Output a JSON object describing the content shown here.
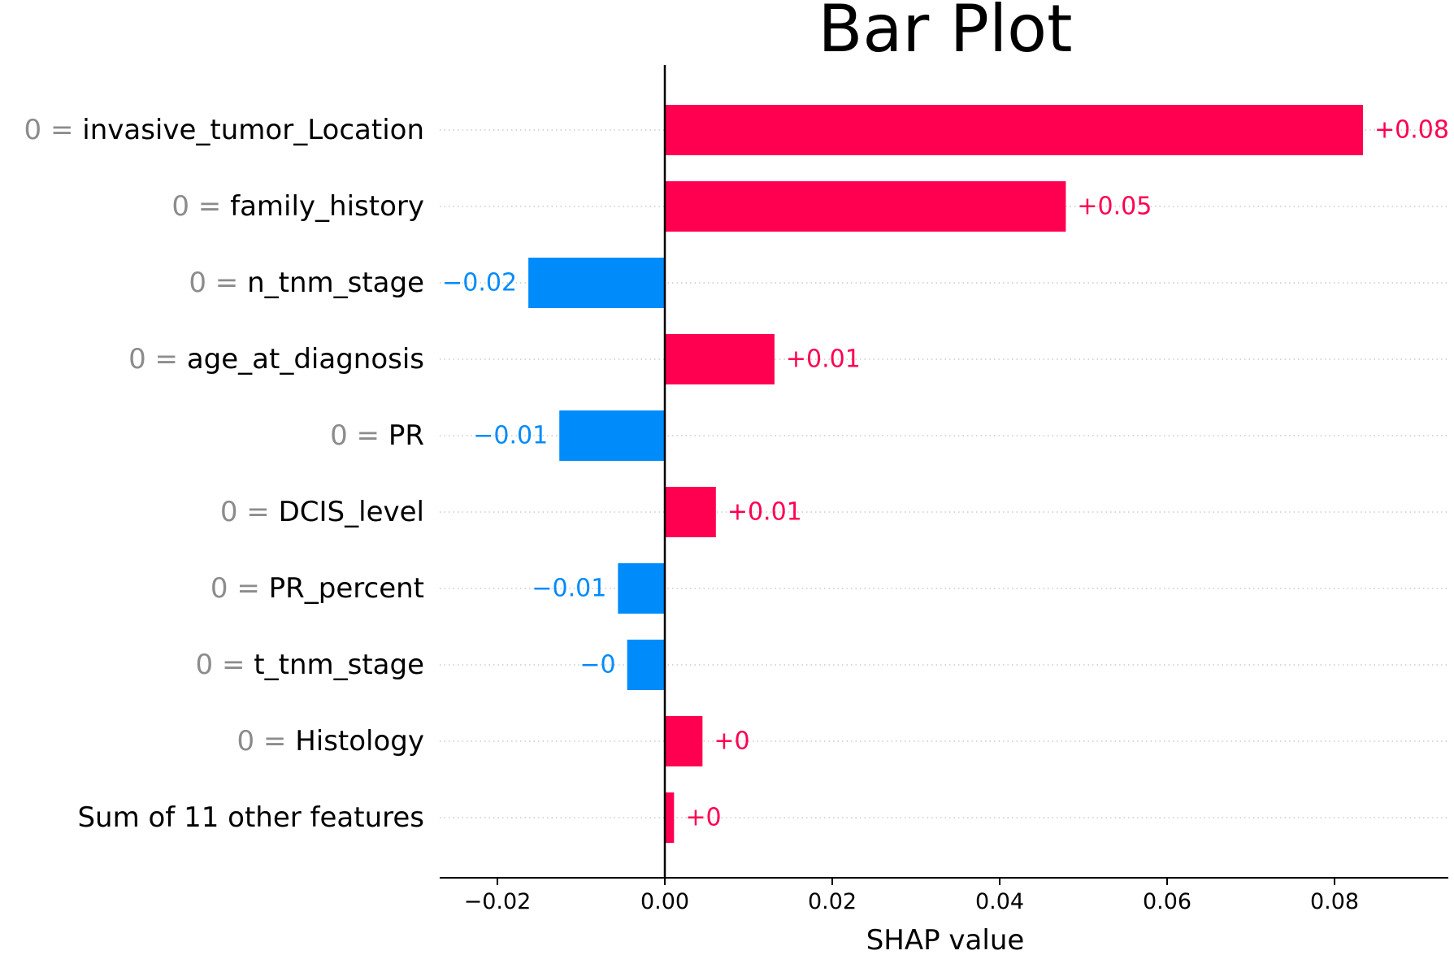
{
  "chart_data": {
    "type": "bar",
    "orientation": "horizontal",
    "title": "Bar Plot",
    "xlabel": "SHAP value",
    "ylabel": "",
    "xlim": [
      -0.027,
      0.094
    ],
    "xticks": [
      -0.02,
      0.0,
      0.02,
      0.04,
      0.06,
      0.08
    ],
    "xtick_labels": [
      "−0.02",
      "0.00",
      "0.02",
      "0.04",
      "0.06",
      "0.08"
    ],
    "grid": false,
    "zero_line": true,
    "colors": {
      "positive": "#ff0051",
      "negative": "#008bfb",
      "feature_value_text": "#8c8c8c",
      "guide_line": "#cccccc"
    },
    "features": [
      {
        "value_text": "0 = ",
        "name": "invasive_tumor_Location",
        "label": "0 = invasive_tumor_Location",
        "shap": 0.0834,
        "data_label": "+0.08"
      },
      {
        "value_text": "0 = ",
        "name": "family_history",
        "label": "0 = family_history",
        "shap": 0.0479,
        "data_label": "+0.05"
      },
      {
        "value_text": "0 = ",
        "name": "n_tnm_stage",
        "label": "0 = n_tnm_stage",
        "shap": -0.0163,
        "data_label": "−0.02"
      },
      {
        "value_text": "0 = ",
        "name": "age_at_diagnosis",
        "label": "0 = age_at_diagnosis",
        "shap": 0.0131,
        "data_label": "+0.01"
      },
      {
        "value_text": "0 = ",
        "name": "PR",
        "label": "0 = PR",
        "shap": -0.0126,
        "data_label": "−0.01"
      },
      {
        "value_text": "0 = ",
        "name": "DCIS_level",
        "label": "0 = DCIS_level",
        "shap": 0.0061,
        "data_label": "+0.01"
      },
      {
        "value_text": "0 = ",
        "name": "PR_percent",
        "label": "0 = PR_percent",
        "shap": -0.0056,
        "data_label": "−0.01"
      },
      {
        "value_text": "0 = ",
        "name": "t_tnm_stage",
        "label": "0 = t_tnm_stage",
        "shap": -0.0045,
        "data_label": "−0"
      },
      {
        "value_text": "0 = ",
        "name": "Histology",
        "label": "0 = Histology",
        "shap": 0.0045,
        "data_label": "+0"
      },
      {
        "value_text": "",
        "name": "Sum of 11 other features",
        "label": "Sum of 11 other features",
        "shap": 0.0011,
        "data_label": "+0"
      }
    ]
  }
}
